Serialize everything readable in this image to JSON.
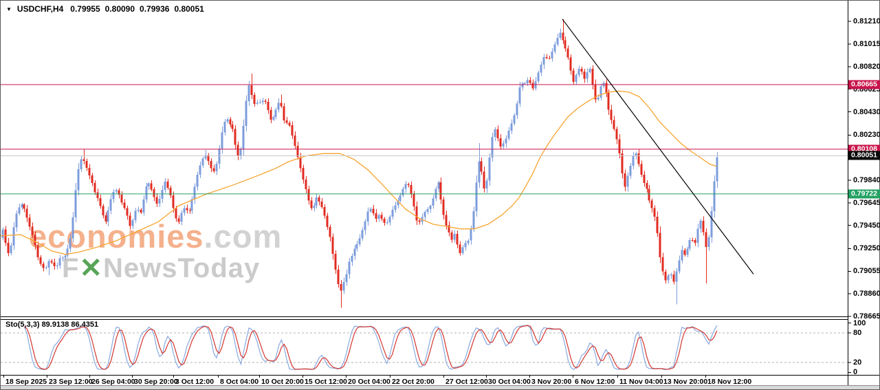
{
  "header": {
    "collapse_icon": "▼",
    "symbol_period": "USDCHF,H4",
    "open": "0.79955",
    "high": "0.80090",
    "low": "0.79936",
    "close": "0.80051"
  },
  "watermark": {
    "brand": "economies",
    "domain": ".com",
    "sub_prefix": "F",
    "sub_x": "✕",
    "sub_rest": "NewsToday"
  },
  "price_axis": {
    "tick_labels": [
      {
        "text": "0.81210",
        "price": 0.8121
      },
      {
        "text": "0.81015",
        "price": 0.81015
      },
      {
        "text": "0.80820",
        "price": 0.8082
      },
      {
        "text": "0.80625",
        "price": 0.80625
      },
      {
        "text": "0.80430",
        "price": 0.8043
      },
      {
        "text": "0.80230",
        "price": 0.8023
      },
      {
        "text": "0.79840",
        "price": 0.7984
      },
      {
        "text": "0.79645",
        "price": 0.79645
      },
      {
        "text": "0.79450",
        "price": 0.7945
      },
      {
        "text": "0.79250",
        "price": 0.7925
      },
      {
        "text": "0.79055",
        "price": 0.79055
      },
      {
        "text": "0.78860",
        "price": 0.7886
      },
      {
        "text": "0.78665",
        "price": 0.78665
      }
    ],
    "badges": [
      {
        "name": "resistance-badge-upper",
        "text": "0.80665",
        "price": 0.80665,
        "bg": "#C8134B"
      },
      {
        "name": "resistance-badge-lower",
        "text": "0.80108",
        "price": 0.80108,
        "bg": "#C8134B"
      },
      {
        "name": "current-price-badge",
        "text": "0.80051",
        "price": 0.80051,
        "bg": "#0A0A0A"
      },
      {
        "name": "support-badge",
        "text": "0.79722",
        "price": 0.79722,
        "bg": "#23A163"
      }
    ]
  },
  "time_axis": {
    "tick_labels": [
      {
        "text": "18 Sep 2025",
        "x": 5
      },
      {
        "text": "23 Sep 12:00",
        "x": 68
      },
      {
        "text": "26 Sep 04:00",
        "x": 130
      },
      {
        "text": "30 Sep 20:00",
        "x": 192
      },
      {
        "text": "3 Oct 12:00",
        "x": 252
      },
      {
        "text": "8 Oct 04:00",
        "x": 317
      },
      {
        "text": "10 Oct 20:00",
        "x": 377
      },
      {
        "text": "15 Oct 12:00",
        "x": 440
      },
      {
        "text": "20 Oct 04:00",
        "x": 503
      },
      {
        "text": "22 Oct 20:00",
        "x": 567
      },
      {
        "text": "27 Oct 12:00",
        "x": 645
      },
      {
        "text": "30 Oct 04:00",
        "x": 707
      },
      {
        "text": "3 Nov 20:00",
        "x": 770
      },
      {
        "text": "6 Nov 12:00",
        "x": 833
      },
      {
        "text": "11 Nov 04:00",
        "x": 898
      },
      {
        "text": "13 Nov 20:00",
        "x": 962
      },
      {
        "text": "18 Nov 12:00",
        "x": 1026
      }
    ]
  },
  "stoch_panel": {
    "label": "Sto(5,3,3) 89.9138 86.4351",
    "indicator": "Stochastic Oscillator",
    "params": {
      "k": 5,
      "d": 3,
      "slowing": 3
    },
    "current_values": [
      89.9138,
      86.4351
    ],
    "levels": [
      80,
      20
    ],
    "scale_labels": [
      {
        "text": "100",
        "v": 100
      },
      {
        "text": "80",
        "v": 80
      },
      {
        "text": "20",
        "v": 20
      },
      {
        "text": "0",
        "v": 0
      }
    ]
  },
  "chart_data": {
    "type": "candlestick",
    "symbol": "USDCHF",
    "timeframe": "H4",
    "title": "USDCHF,H4",
    "ohlc_current": {
      "open": 0.79955,
      "high": 0.8009,
      "low": 0.79936,
      "close": 0.80051
    },
    "x_range": [
      "18 Sep 2025",
      "18 Nov 2025 12:00"
    ],
    "y_axis_range": [
      0.786,
      0.8129
    ],
    "grid": "off",
    "legend": "none",
    "colors": {
      "bull": "#7C9CDC",
      "bear": "#E22B20",
      "ma": "#F7A430",
      "level_red": "#C8134B",
      "level_green": "#23A163",
      "level_gray": "#C8C8C8",
      "trendline": "#000000",
      "stoch_main": "#88A9E0",
      "stoch_signal": "#D2352E",
      "stoch_level": "#B0B0B0"
    },
    "levels": [
      {
        "label": "0.80665",
        "price": 0.80665,
        "color": "#C8134B",
        "kind": "resistance"
      },
      {
        "label": "0.80108",
        "price": 0.80108,
        "color": "#C8134B",
        "kind": "resistance"
      },
      {
        "label": "0.80051",
        "price": 0.80051,
        "color": "#C8C8C8",
        "kind": "current-price"
      },
      {
        "label": "0.79722",
        "price": 0.79722,
        "color": "#23A163",
        "kind": "support"
      }
    ],
    "trendline": {
      "x1": 818,
      "price1": 0.8123,
      "x2": 1096,
      "price2": 0.7903
    },
    "ma_line": {
      "name": "moving-average",
      "period_hint": "~50",
      "color": "#F7A430"
    },
    "price_path": [
      [
        2,
        0.7934
      ],
      [
        6,
        0.7941
      ],
      [
        10,
        0.793
      ],
      [
        14,
        0.7921
      ],
      [
        18,
        0.7928
      ],
      [
        22,
        0.7944
      ],
      [
        26,
        0.7956
      ],
      [
        30,
        0.7962
      ],
      [
        34,
        0.7963
      ],
      [
        38,
        0.7958
      ],
      [
        42,
        0.795
      ],
      [
        46,
        0.7943
      ],
      [
        50,
        0.7936
      ],
      [
        54,
        0.7926
      ],
      [
        58,
        0.7916
      ],
      [
        62,
        0.7911
      ],
      [
        66,
        0.7907
      ],
      [
        70,
        0.791
      ],
      [
        74,
        0.7915
      ],
      [
        78,
        0.7912
      ],
      [
        82,
        0.7908
      ],
      [
        86,
        0.7912
      ],
      [
        90,
        0.7918
      ],
      [
        94,
        0.7916
      ],
      [
        98,
        0.7922
      ],
      [
        102,
        0.7928
      ],
      [
        106,
        0.7938
      ],
      [
        110,
        0.7962
      ],
      [
        114,
        0.7985
      ],
      [
        118,
        0.8
      ],
      [
        122,
        0.8004
      ],
      [
        126,
        0.7998
      ],
      [
        131,
        0.799
      ],
      [
        136,
        0.7981
      ],
      [
        141,
        0.7972
      ],
      [
        146,
        0.7965
      ],
      [
        151,
        0.7955
      ],
      [
        156,
        0.7948
      ],
      [
        161,
        0.7962
      ],
      [
        166,
        0.7973
      ],
      [
        171,
        0.7976
      ],
      [
        176,
        0.797
      ],
      [
        181,
        0.7962
      ],
      [
        186,
        0.7955
      ],
      [
        191,
        0.7944
      ],
      [
        196,
        0.7952
      ],
      [
        201,
        0.7961
      ],
      [
        206,
        0.7954
      ],
      [
        211,
        0.7968
      ],
      [
        216,
        0.7983
      ],
      [
        221,
        0.7978
      ],
      [
        226,
        0.797
      ],
      [
        231,
        0.7962
      ],
      [
        236,
        0.7971
      ],
      [
        241,
        0.7984
      ],
      [
        246,
        0.7978
      ],
      [
        251,
        0.7968
      ],
      [
        256,
        0.7954
      ],
      [
        261,
        0.7946
      ],
      [
        266,
        0.7957
      ],
      [
        271,
        0.7962
      ],
      [
        276,
        0.7955
      ],
      [
        281,
        0.7966
      ],
      [
        286,
        0.798
      ],
      [
        291,
        0.7994
      ],
      [
        296,
        0.8002
      ],
      [
        301,
        0.8006
      ],
      [
        306,
        0.8
      ],
      [
        311,
        0.799
      ],
      [
        316,
        0.7996
      ],
      [
        321,
        0.8012
      ],
      [
        326,
        0.803
      ],
      [
        331,
        0.8038
      ],
      [
        336,
        0.8032
      ],
      [
        341,
        0.8028
      ],
      [
        346,
        0.8008
      ],
      [
        350,
        0.8003
      ],
      [
        354,
        0.8018
      ],
      [
        358,
        0.8042
      ],
      [
        362,
        0.8062
      ],
      [
        365,
        0.8067
      ],
      [
        369,
        0.8055
      ],
      [
        373,
        0.8048
      ],
      [
        377,
        0.8052
      ],
      [
        381,
        0.805
      ],
      [
        385,
        0.8055
      ],
      [
        389,
        0.805
      ],
      [
        393,
        0.8042
      ],
      [
        397,
        0.8032
      ],
      [
        401,
        0.8042
      ],
      [
        405,
        0.8048
      ],
      [
        409,
        0.8052
      ],
      [
        413,
        0.8044
      ],
      [
        417,
        0.803
      ],
      [
        421,
        0.8038
      ],
      [
        425,
        0.8026
      ],
      [
        429,
        0.8018
      ],
      [
        433,
        0.8008
      ],
      [
        437,
        0.8
      ],
      [
        441,
        0.7988
      ],
      [
        445,
        0.798
      ],
      [
        449,
        0.797
      ],
      [
        453,
        0.7962
      ],
      [
        457,
        0.7958
      ],
      [
        461,
        0.797
      ],
      [
        465,
        0.7968
      ],
      [
        469,
        0.7963
      ],
      [
        473,
        0.7958
      ],
      [
        477,
        0.7946
      ],
      [
        481,
        0.7938
      ],
      [
        485,
        0.7925
      ],
      [
        489,
        0.791
      ],
      [
        493,
        0.7896
      ],
      [
        497,
        0.7888
      ],
      [
        501,
        0.7895
      ],
      [
        505,
        0.7902
      ],
      [
        509,
        0.7912
      ],
      [
        514,
        0.792
      ],
      [
        519,
        0.7927
      ],
      [
        524,
        0.7932
      ],
      [
        529,
        0.794
      ],
      [
        534,
        0.795
      ],
      [
        539,
        0.7962
      ],
      [
        544,
        0.7958
      ],
      [
        549,
        0.795
      ],
      [
        554,
        0.7956
      ],
      [
        559,
        0.7948
      ],
      [
        564,
        0.7946
      ],
      [
        569,
        0.7953
      ],
      [
        574,
        0.7961
      ],
      [
        579,
        0.7964
      ],
      [
        584,
        0.797
      ],
      [
        589,
        0.7977
      ],
      [
        594,
        0.7982
      ],
      [
        599,
        0.7976
      ],
      [
        604,
        0.7962
      ],
      [
        609,
        0.7946
      ],
      [
        614,
        0.795
      ],
      [
        619,
        0.7956
      ],
      [
        624,
        0.796
      ],
      [
        629,
        0.7963
      ],
      [
        634,
        0.7972
      ],
      [
        639,
        0.7985
      ],
      [
        643,
        0.7968
      ],
      [
        647,
        0.7955
      ],
      [
        651,
        0.7946
      ],
      [
        655,
        0.794
      ],
      [
        659,
        0.7933
      ],
      [
        663,
        0.7938
      ],
      [
        667,
        0.7928
      ],
      [
        671,
        0.7921
      ],
      [
        675,
        0.7926
      ],
      [
        679,
        0.793
      ],
      [
        683,
        0.7932
      ],
      [
        687,
        0.7942
      ],
      [
        691,
        0.7958
      ],
      [
        695,
        0.7985
      ],
      [
        699,
        0.8003
      ],
      [
        703,
        0.799
      ],
      [
        707,
        0.7974
      ],
      [
        711,
        0.7985
      ],
      [
        715,
        0.8008
      ],
      [
        719,
        0.8025
      ],
      [
        723,
        0.8028
      ],
      [
        727,
        0.8018
      ],
      [
        731,
        0.8012
      ],
      [
        735,
        0.8016
      ],
      [
        739,
        0.8021
      ],
      [
        743,
        0.8028
      ],
      [
        747,
        0.8035
      ],
      [
        751,
        0.8042
      ],
      [
        755,
        0.8055
      ],
      [
        759,
        0.8069
      ],
      [
        763,
        0.8066
      ],
      [
        767,
        0.807
      ],
      [
        771,
        0.8072
      ],
      [
        775,
        0.8065
      ],
      [
        779,
        0.8063
      ],
      [
        783,
        0.8075
      ],
      [
        787,
        0.808
      ],
      [
        791,
        0.8088
      ],
      [
        795,
        0.8092
      ],
      [
        799,
        0.8086
      ],
      [
        803,
        0.8092
      ],
      [
        807,
        0.8098
      ],
      [
        811,
        0.8104
      ],
      [
        815,
        0.811
      ],
      [
        818,
        0.8112
      ],
      [
        821,
        0.8104
      ],
      [
        824,
        0.8098
      ],
      [
        827,
        0.8092
      ],
      [
        830,
        0.8086
      ],
      [
        833,
        0.8076
      ],
      [
        836,
        0.8068
      ],
      [
        839,
        0.8072
      ],
      [
        842,
        0.8078
      ],
      [
        845,
        0.8082
      ],
      [
        848,
        0.8078
      ],
      [
        851,
        0.807
      ],
      [
        854,
        0.8074
      ],
      [
        857,
        0.8078
      ],
      [
        860,
        0.808
      ],
      [
        863,
        0.807
      ],
      [
        866,
        0.8058
      ],
      [
        869,
        0.805
      ],
      [
        872,
        0.8056
      ],
      [
        875,
        0.8064
      ],
      [
        878,
        0.8069
      ],
      [
        881,
        0.8066
      ],
      [
        884,
        0.8058
      ],
      [
        887,
        0.8046
      ],
      [
        890,
        0.8038
      ],
      [
        893,
        0.8032
      ],
      [
        896,
        0.8028
      ],
      [
        899,
        0.802
      ],
      [
        902,
        0.8012
      ],
      [
        905,
        0.8
      ],
      [
        908,
        0.7985
      ],
      [
        911,
        0.7978
      ],
      [
        914,
        0.7985
      ],
      [
        917,
        0.7992
      ],
      [
        920,
        0.8
      ],
      [
        923,
        0.8005
      ],
      [
        926,
        0.8008
      ],
      [
        929,
        0.8002
      ],
      [
        932,
        0.7995
      ],
      [
        935,
        0.7988
      ],
      [
        938,
        0.7982
      ],
      [
        941,
        0.798
      ],
      [
        944,
        0.7972
      ],
      [
        947,
        0.7966
      ],
      [
        950,
        0.796
      ],
      [
        953,
        0.7955
      ],
      [
        956,
        0.795
      ],
      [
        959,
        0.7935
      ],
      [
        962,
        0.7918
      ],
      [
        965,
        0.7907
      ],
      [
        968,
        0.79
      ],
      [
        971,
        0.7896
      ],
      [
        974,
        0.7902
      ],
      [
        977,
        0.7908
      ],
      [
        980,
        0.7893
      ],
      [
        983,
        0.7899
      ],
      [
        986,
        0.7906
      ],
      [
        989,
        0.7913
      ],
      [
        992,
        0.7921
      ],
      [
        995,
        0.7925
      ],
      [
        998,
        0.7918
      ],
      [
        1001,
        0.7924
      ],
      [
        1004,
        0.793
      ],
      [
        1007,
        0.7936
      ],
      [
        1010,
        0.7932
      ],
      [
        1013,
        0.7929
      ],
      [
        1016,
        0.7938
      ],
      [
        1019,
        0.7946
      ],
      [
        1022,
        0.7951
      ],
      [
        1025,
        0.794
      ],
      [
        1028,
        0.7928
      ],
      [
        1031,
        0.7925
      ],
      [
        1034,
        0.794
      ],
      [
        1037,
        0.7958
      ],
      [
        1040,
        0.7978
      ],
      [
        1043,
        0.7995
      ],
      [
        1045,
        0.8004
      ]
    ],
    "wick_extremes": [
      [
        70,
        0.7902,
        "l"
      ],
      [
        122,
        0.8011,
        "h"
      ],
      [
        301,
        0.801,
        "h"
      ],
      [
        365,
        0.8076,
        "h"
      ],
      [
        408,
        0.8058,
        "h"
      ],
      [
        497,
        0.7874,
        "l"
      ],
      [
        697,
        0.8016,
        "h"
      ],
      [
        818,
        0.8123,
        "h"
      ],
      [
        982,
        0.7877,
        "l"
      ],
      [
        1029,
        0.7895,
        "l"
      ]
    ],
    "ma_path": [
      [
        0,
        0.7936
      ],
      [
        30,
        0.7937
      ],
      [
        55,
        0.793
      ],
      [
        75,
        0.7923
      ],
      [
        95,
        0.792
      ],
      [
        115,
        0.7922
      ],
      [
        140,
        0.7926
      ],
      [
        170,
        0.7932
      ],
      [
        200,
        0.794
      ],
      [
        230,
        0.7948
      ],
      [
        260,
        0.7962
      ],
      [
        300,
        0.7972
      ],
      [
        340,
        0.798
      ],
      [
        375,
        0.7988
      ],
      [
        400,
        0.7994
      ],
      [
        420,
        0.8
      ],
      [
        445,
        0.8005
      ],
      [
        470,
        0.8007
      ],
      [
        495,
        0.8007
      ],
      [
        515,
        0.8002
      ],
      [
        535,
        0.7993
      ],
      [
        555,
        0.7981
      ],
      [
        572,
        0.797
      ],
      [
        590,
        0.7959
      ],
      [
        610,
        0.7951
      ],
      [
        630,
        0.7946
      ],
      [
        650,
        0.7944
      ],
      [
        670,
        0.7942
      ],
      [
        690,
        0.7942
      ],
      [
        710,
        0.7946
      ],
      [
        730,
        0.7954
      ],
      [
        745,
        0.7962
      ],
      [
        755,
        0.7969
      ],
      [
        765,
        0.7979
      ],
      [
        775,
        0.799
      ],
      [
        785,
        0.8003
      ],
      [
        795,
        0.8013
      ],
      [
        805,
        0.8022
      ],
      [
        815,
        0.803
      ],
      [
        825,
        0.8038
      ],
      [
        840,
        0.8046
      ],
      [
        855,
        0.8052
      ],
      [
        870,
        0.8057
      ],
      [
        885,
        0.806
      ],
      [
        900,
        0.8061
      ],
      [
        915,
        0.806
      ],
      [
        930,
        0.8056
      ],
      [
        945,
        0.8046
      ],
      [
        960,
        0.8034
      ],
      [
        975,
        0.8025
      ],
      [
        990,
        0.8016
      ],
      [
        1005,
        0.8009
      ],
      [
        1020,
        0.8003
      ],
      [
        1032,
        0.7998
      ],
      [
        1042,
        0.7996
      ]
    ]
  }
}
